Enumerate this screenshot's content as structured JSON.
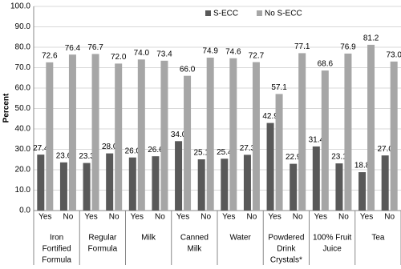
{
  "chart_data": {
    "type": "bar",
    "y_label": "Percent",
    "categories": [
      "Yes",
      "No",
      "Yes",
      "No",
      "Yes",
      "No",
      "Yes",
      "No",
      "Yes",
      "No",
      "Yes",
      "No",
      "Yes",
      "No",
      "Yes",
      "No"
    ],
    "groups": [
      [
        "Iron",
        "Fortified",
        "Formula"
      ],
      [
        "Regular",
        "Formula"
      ],
      [
        "Milk"
      ],
      [
        "Canned",
        "Milk"
      ],
      [
        "Water"
      ],
      [
        "Powdered",
        "Drink",
        "Crystals*"
      ],
      [
        "100% Fruit",
        "Juice"
      ],
      [
        "Tea"
      ]
    ],
    "series": [
      {
        "name": "S-ECC",
        "color": "#595959",
        "values": [
          27.4,
          23.6,
          23.3,
          28.0,
          26.0,
          26.6,
          34.0,
          25.1,
          25.4,
          27.3,
          42.9,
          22.9,
          31.4,
          23.1,
          18.8,
          27.0
        ],
        "value_labels": [
          "27.4",
          "23.6",
          "23.3",
          "28.0",
          "26.0",
          "26.6",
          "34.0",
          "25.1",
          "25.4",
          "27.3",
          "42.9",
          "22.9",
          "31.4",
          "23.1",
          "18.8",
          "27.0"
        ]
      },
      {
        "name": "No S-ECC",
        "color": "#a6a6a6",
        "values": [
          72.6,
          76.4,
          76.7,
          72.0,
          74.0,
          73.4,
          66.0,
          74.9,
          74.6,
          72.7,
          57.1,
          77.1,
          68.6,
          76.9,
          81.2,
          73.0
        ],
        "value_labels": [
          "72.6",
          "76.4",
          "76.7",
          "72.0",
          "74.0",
          "73.4",
          "66.0",
          "74.9",
          "74.6",
          "72.7",
          "57.1",
          "77.1",
          "68.6",
          "76.9",
          "81.2",
          "73.0"
        ]
      }
    ],
    "ylim": [
      0,
      100
    ],
    "yticks": [
      {
        "value": 0,
        "label": "0.0"
      },
      {
        "value": 10,
        "label": "10.0"
      },
      {
        "value": 20,
        "label": "20.0"
      },
      {
        "value": 30,
        "label": "30.0"
      },
      {
        "value": 40,
        "label": "40.0"
      },
      {
        "value": 50,
        "label": "50.0"
      },
      {
        "value": 60,
        "label": "60.0"
      },
      {
        "value": 70,
        "label": "70.0"
      },
      {
        "value": 80,
        "label": "80.0"
      },
      {
        "value": 90,
        "label": "90.0"
      },
      {
        "value": 100,
        "label": "100.0"
      }
    ],
    "grid": true,
    "legend": "top"
  }
}
